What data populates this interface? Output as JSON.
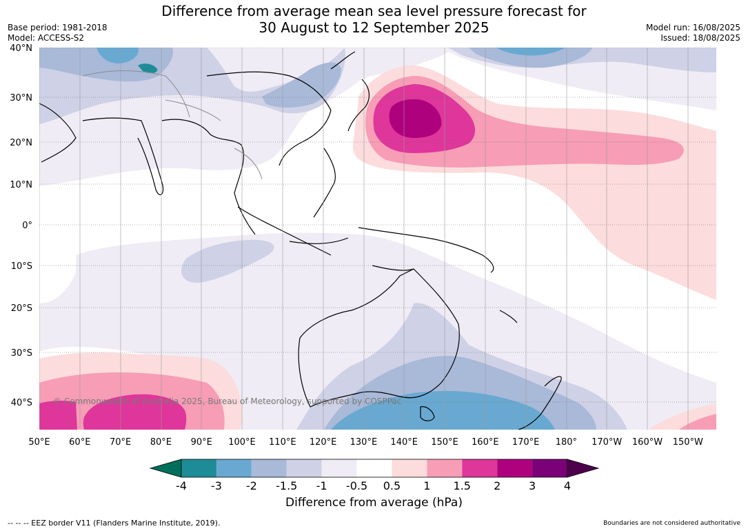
{
  "header": {
    "title_line1": "Difference from average mean sea level pressure forecast for",
    "title_line2": "30 August to 12 September 2025",
    "base_period": "Base period: 1981-2018",
    "model": "Model: ACCESS-S2",
    "model_run": "Model run: 16/08/2025",
    "issued": "Issued: 18/08/2025"
  },
  "map": {
    "lat_labels": [
      "40°N",
      "30°N",
      "20°N",
      "10°N",
      "0°",
      "10°S",
      "20°S",
      "30°S",
      "40°S"
    ],
    "lon_labels": [
      "50°E",
      "60°E",
      "70°E",
      "80°E",
      "90°E",
      "100°E",
      "110°E",
      "120°E",
      "130°E",
      "140°E",
      "150°E",
      "160°E",
      "170°E",
      "180°",
      "170°W",
      "160°W",
      "150°W"
    ],
    "copyright": "© Commonwealth of Australia 2025, Bureau of Meteorology, supported by COSPPac",
    "colors": {
      "ocean_neutral": "#ffffff",
      "land_outline": "#000000",
      "border": "#8c8c8c"
    }
  },
  "legend": {
    "tick_labels": [
      "-4",
      "-3",
      "-2",
      "-1.5",
      "-1",
      "-0.5",
      "0.5",
      "1",
      "1.5",
      "2",
      "3",
      "4"
    ],
    "colors": [
      "#006f5b",
      "#1e8c96",
      "#69a9d1",
      "#a9b9d8",
      "#cfd1e6",
      "#efecf5",
      "#ffffff",
      "#fcdcdc",
      "#f79db6",
      "#de369a",
      "#ae017e",
      "#7a0177",
      "#4d004b"
    ],
    "title": "Difference from average (hPa)"
  },
  "footer": {
    "eez_note": "--  --  -- EEZ border V11 (Flanders Marine Institute, 2019).",
    "boundaries_note": "Boundaries are not considered authoritative"
  }
}
